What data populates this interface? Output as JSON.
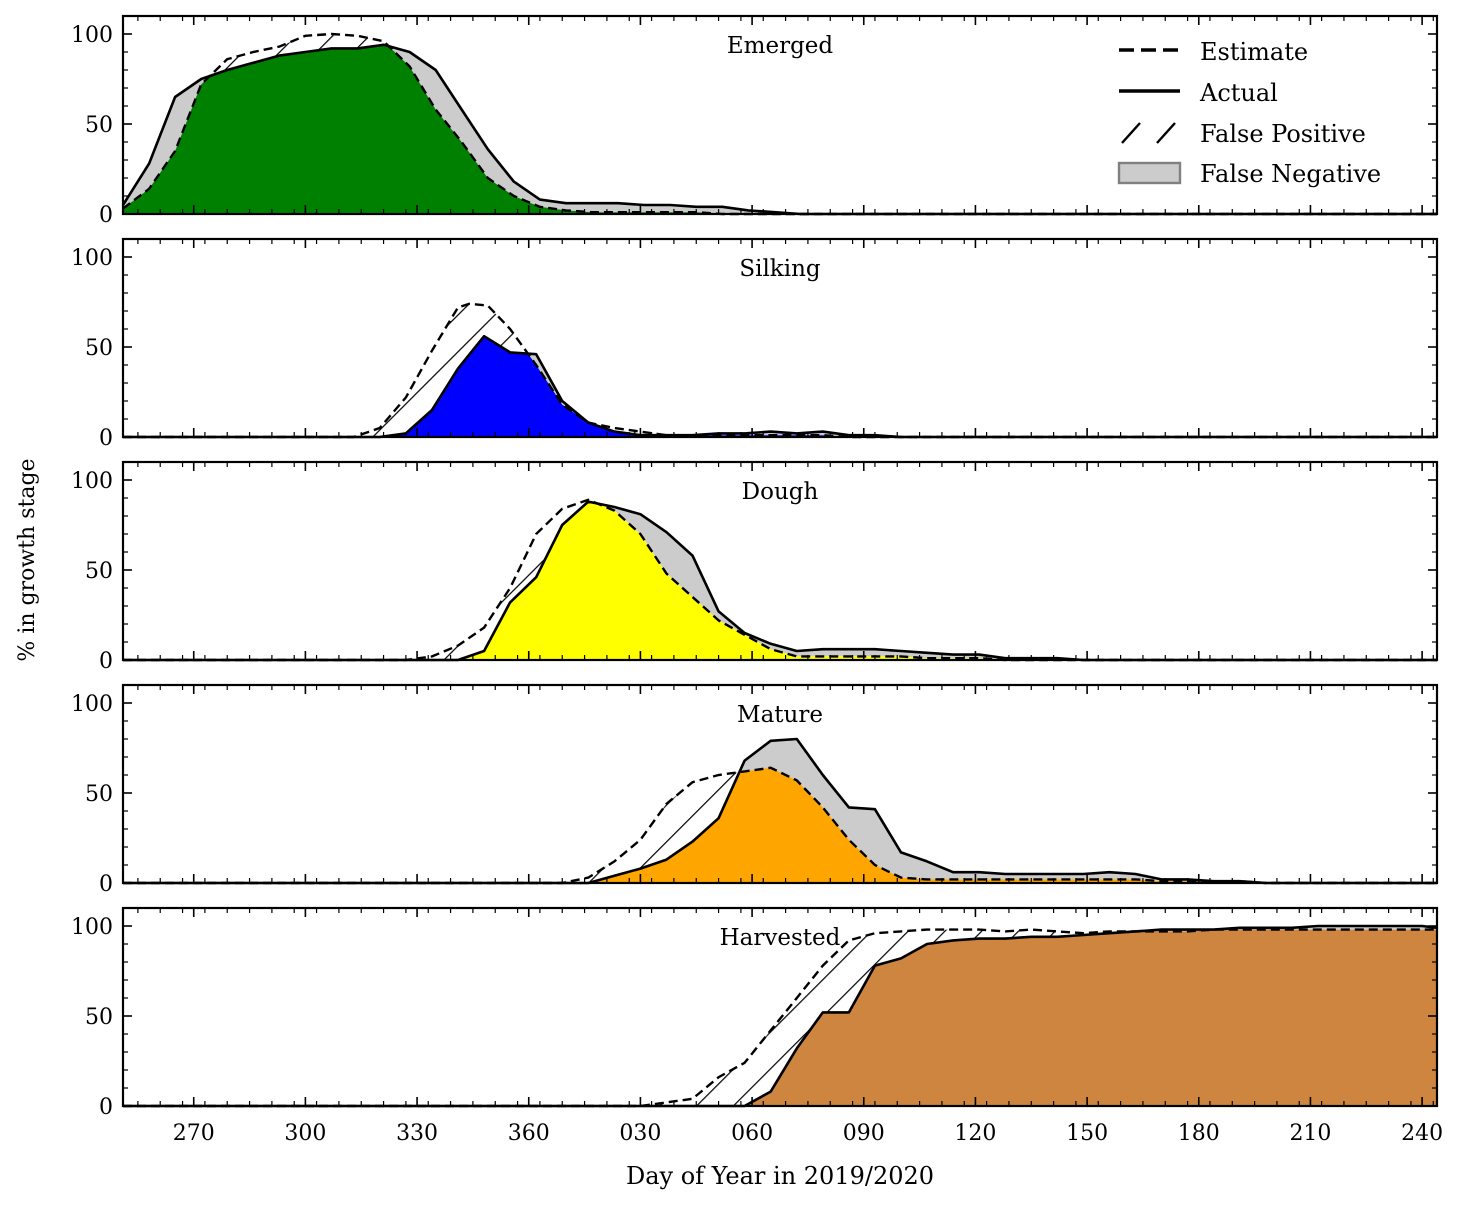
{
  "figure": {
    "ylabel": "% in growth stage",
    "xlabel": "Day of Year in 2019/2020",
    "legend": {
      "position": "top-right",
      "entries": [
        {
          "style": "dashed",
          "label": "Estimate"
        },
        {
          "style": "solid",
          "label": "Actual"
        },
        {
          "style": "hatch",
          "label": "False Positive"
        },
        {
          "style": "patch",
          "label": "False Negative"
        }
      ]
    }
  },
  "colors": {
    "Emerged": "#008000",
    "Silking": "#0000ff",
    "Dough": "#ffff00",
    "Mature": "#ffa500",
    "Harvested": "#cd853f",
    "false_negative": "#cccccc"
  },
  "chart_data": {
    "type": "area",
    "x_axis": {
      "range": [
        251,
        604
      ],
      "ticks": [
        270,
        300,
        330,
        360,
        390,
        420,
        450,
        480,
        510,
        540,
        570,
        600
      ],
      "tick_labels": [
        "270",
        "300",
        "330",
        "360",
        "030",
        "060",
        "090",
        "120",
        "150",
        "180",
        "210",
        "240"
      ]
    },
    "y_axis": {
      "range": [
        0,
        110
      ],
      "ticks": [
        0,
        50,
        100
      ],
      "tick_labels": [
        "0",
        "50",
        "100"
      ]
    },
    "panels": [
      {
        "title": "Emerged",
        "actual": [
          [
            251,
            5
          ],
          [
            258,
            28
          ],
          [
            265,
            65
          ],
          [
            272,
            75
          ],
          [
            279,
            80
          ],
          [
            286,
            84
          ],
          [
            293,
            88
          ],
          [
            300,
            90
          ],
          [
            307,
            92
          ],
          [
            314,
            92
          ],
          [
            321,
            94
          ],
          [
            328,
            90
          ],
          [
            335,
            80
          ],
          [
            342,
            58
          ],
          [
            349,
            36
          ],
          [
            356,
            18
          ],
          [
            363,
            8
          ],
          [
            370,
            6
          ],
          [
            377,
            6
          ],
          [
            384,
            6
          ],
          [
            391,
            5
          ],
          [
            398,
            5
          ],
          [
            405,
            4
          ],
          [
            412,
            4
          ],
          [
            419,
            2
          ],
          [
            426,
            1
          ],
          [
            433,
            0
          ],
          [
            604,
            0
          ]
        ],
        "estimate": [
          [
            251,
            3
          ],
          [
            258,
            14
          ],
          [
            265,
            35
          ],
          [
            272,
            72
          ],
          [
            279,
            86
          ],
          [
            286,
            90
          ],
          [
            293,
            93
          ],
          [
            300,
            99
          ],
          [
            307,
            100
          ],
          [
            314,
            99
          ],
          [
            321,
            96
          ],
          [
            328,
            82
          ],
          [
            335,
            58
          ],
          [
            342,
            40
          ],
          [
            349,
            20
          ],
          [
            356,
            10
          ],
          [
            363,
            4
          ],
          [
            370,
            2
          ],
          [
            377,
            1
          ],
          [
            384,
            1
          ],
          [
            391,
            1
          ],
          [
            398,
            1
          ],
          [
            405,
            1
          ],
          [
            412,
            0
          ],
          [
            604,
            0
          ]
        ]
      },
      {
        "title": "Silking",
        "actual": [
          [
            251,
            0
          ],
          [
            320,
            0
          ],
          [
            327,
            2
          ],
          [
            334,
            15
          ],
          [
            341,
            38
          ],
          [
            348,
            56
          ],
          [
            355,
            47
          ],
          [
            362,
            46
          ],
          [
            369,
            20
          ],
          [
            376,
            8
          ],
          [
            383,
            3
          ],
          [
            390,
            1
          ],
          [
            397,
            1
          ],
          [
            404,
            1
          ],
          [
            411,
            2
          ],
          [
            418,
            2
          ],
          [
            425,
            3
          ],
          [
            432,
            2
          ],
          [
            439,
            3
          ],
          [
            446,
            1
          ],
          [
            453,
            1
          ],
          [
            460,
            0
          ],
          [
            604,
            0
          ]
        ],
        "estimate": [
          [
            251,
            0
          ],
          [
            313,
            0
          ],
          [
            320,
            5
          ],
          [
            327,
            22
          ],
          [
            334,
            48
          ],
          [
            341,
            72
          ],
          [
            344,
            74
          ],
          [
            349,
            73
          ],
          [
            355,
            60
          ],
          [
            362,
            40
          ],
          [
            369,
            18
          ],
          [
            376,
            8
          ],
          [
            383,
            5
          ],
          [
            390,
            3
          ],
          [
            397,
            1
          ],
          [
            404,
            1
          ],
          [
            411,
            1
          ],
          [
            418,
            1
          ],
          [
            425,
            1
          ],
          [
            432,
            1
          ],
          [
            439,
            1
          ],
          [
            446,
            0
          ],
          [
            604,
            0
          ]
        ]
      },
      {
        "title": "Dough",
        "actual": [
          [
            251,
            0
          ],
          [
            341,
            0
          ],
          [
            348,
            5
          ],
          [
            355,
            32
          ],
          [
            362,
            46
          ],
          [
            369,
            75
          ],
          [
            376,
            88
          ],
          [
            383,
            85
          ],
          [
            390,
            81
          ],
          [
            397,
            71
          ],
          [
            404,
            58
          ],
          [
            411,
            27
          ],
          [
            418,
            15
          ],
          [
            425,
            9
          ],
          [
            432,
            5
          ],
          [
            439,
            6
          ],
          [
            446,
            6
          ],
          [
            453,
            6
          ],
          [
            460,
            5
          ],
          [
            467,
            4
          ],
          [
            474,
            3
          ],
          [
            481,
            3
          ],
          [
            488,
            1
          ],
          [
            495,
            1
          ],
          [
            502,
            1
          ],
          [
            509,
            0
          ],
          [
            604,
            0
          ]
        ],
        "estimate": [
          [
            251,
            0
          ],
          [
            327,
            0
          ],
          [
            334,
            2
          ],
          [
            341,
            8
          ],
          [
            348,
            18
          ],
          [
            355,
            40
          ],
          [
            362,
            70
          ],
          [
            369,
            84
          ],
          [
            376,
            89
          ],
          [
            383,
            83
          ],
          [
            390,
            70
          ],
          [
            397,
            48
          ],
          [
            404,
            35
          ],
          [
            411,
            22
          ],
          [
            418,
            14
          ],
          [
            425,
            6
          ],
          [
            432,
            2
          ],
          [
            439,
            2
          ],
          [
            446,
            2
          ],
          [
            453,
            2
          ],
          [
            460,
            2
          ],
          [
            467,
            1
          ],
          [
            474,
            1
          ],
          [
            481,
            1
          ],
          [
            488,
            0
          ],
          [
            604,
            0
          ]
        ]
      },
      {
        "title": "Mature",
        "actual": [
          [
            251,
            0
          ],
          [
            376,
            0
          ],
          [
            383,
            4
          ],
          [
            390,
            8
          ],
          [
            397,
            13
          ],
          [
            404,
            23
          ],
          [
            411,
            36
          ],
          [
            418,
            68
          ],
          [
            425,
            79
          ],
          [
            432,
            80
          ],
          [
            439,
            60
          ],
          [
            446,
            42
          ],
          [
            453,
            41
          ],
          [
            460,
            17
          ],
          [
            467,
            12
          ],
          [
            474,
            6
          ],
          [
            481,
            6
          ],
          [
            488,
            5
          ],
          [
            495,
            5
          ],
          [
            502,
            5
          ],
          [
            509,
            5
          ],
          [
            516,
            6
          ],
          [
            523,
            5
          ],
          [
            530,
            2
          ],
          [
            537,
            2
          ],
          [
            544,
            1
          ],
          [
            551,
            1
          ],
          [
            558,
            0
          ],
          [
            604,
            0
          ]
        ],
        "estimate": [
          [
            251,
            0
          ],
          [
            369,
            0
          ],
          [
            376,
            3
          ],
          [
            383,
            12
          ],
          [
            390,
            24
          ],
          [
            397,
            44
          ],
          [
            404,
            56
          ],
          [
            411,
            60
          ],
          [
            418,
            62
          ],
          [
            425,
            64
          ],
          [
            432,
            57
          ],
          [
            439,
            42
          ],
          [
            446,
            24
          ],
          [
            453,
            10
          ],
          [
            460,
            3
          ],
          [
            467,
            2
          ],
          [
            474,
            2
          ],
          [
            481,
            2
          ],
          [
            488,
            2
          ],
          [
            495,
            2
          ],
          [
            502,
            2
          ],
          [
            509,
            2
          ],
          [
            516,
            2
          ],
          [
            523,
            2
          ],
          [
            530,
            1
          ],
          [
            537,
            1
          ],
          [
            544,
            1
          ],
          [
            551,
            1
          ],
          [
            558,
            0
          ],
          [
            604,
            0
          ]
        ]
      },
      {
        "title": "Harvested",
        "actual": [
          [
            251,
            0
          ],
          [
            411,
            0
          ],
          [
            418,
            0
          ],
          [
            425,
            8
          ],
          [
            432,
            32
          ],
          [
            439,
            52
          ],
          [
            446,
            52
          ],
          [
            453,
            78
          ],
          [
            460,
            82
          ],
          [
            467,
            90
          ],
          [
            474,
            92
          ],
          [
            481,
            93
          ],
          [
            488,
            93
          ],
          [
            495,
            94
          ],
          [
            502,
            94
          ],
          [
            509,
            95
          ],
          [
            516,
            96
          ],
          [
            523,
            97
          ],
          [
            530,
            98
          ],
          [
            537,
            98
          ],
          [
            544,
            98
          ],
          [
            551,
            99
          ],
          [
            558,
            99
          ],
          [
            565,
            99
          ],
          [
            572,
            100
          ],
          [
            579,
            100
          ],
          [
            586,
            100
          ],
          [
            593,
            100
          ],
          [
            600,
            100
          ],
          [
            604,
            99
          ]
        ],
        "estimate": [
          [
            251,
            0
          ],
          [
            390,
            0
          ],
          [
            397,
            2
          ],
          [
            404,
            4
          ],
          [
            411,
            16
          ],
          [
            418,
            24
          ],
          [
            425,
            42
          ],
          [
            432,
            60
          ],
          [
            439,
            78
          ],
          [
            446,
            92
          ],
          [
            453,
            96
          ],
          [
            460,
            97
          ],
          [
            467,
            98
          ],
          [
            474,
            98
          ],
          [
            481,
            98
          ],
          [
            488,
            97
          ],
          [
            495,
            98
          ],
          [
            502,
            97
          ],
          [
            509,
            96
          ],
          [
            516,
            97
          ],
          [
            523,
            97
          ],
          [
            530,
            97
          ],
          [
            537,
            97
          ],
          [
            544,
            98
          ],
          [
            551,
            98
          ],
          [
            558,
            98
          ],
          [
            565,
            98
          ],
          [
            572,
            98
          ],
          [
            579,
            98
          ],
          [
            586,
            98
          ],
          [
            593,
            98
          ],
          [
            600,
            98
          ],
          [
            604,
            98
          ]
        ]
      }
    ]
  }
}
